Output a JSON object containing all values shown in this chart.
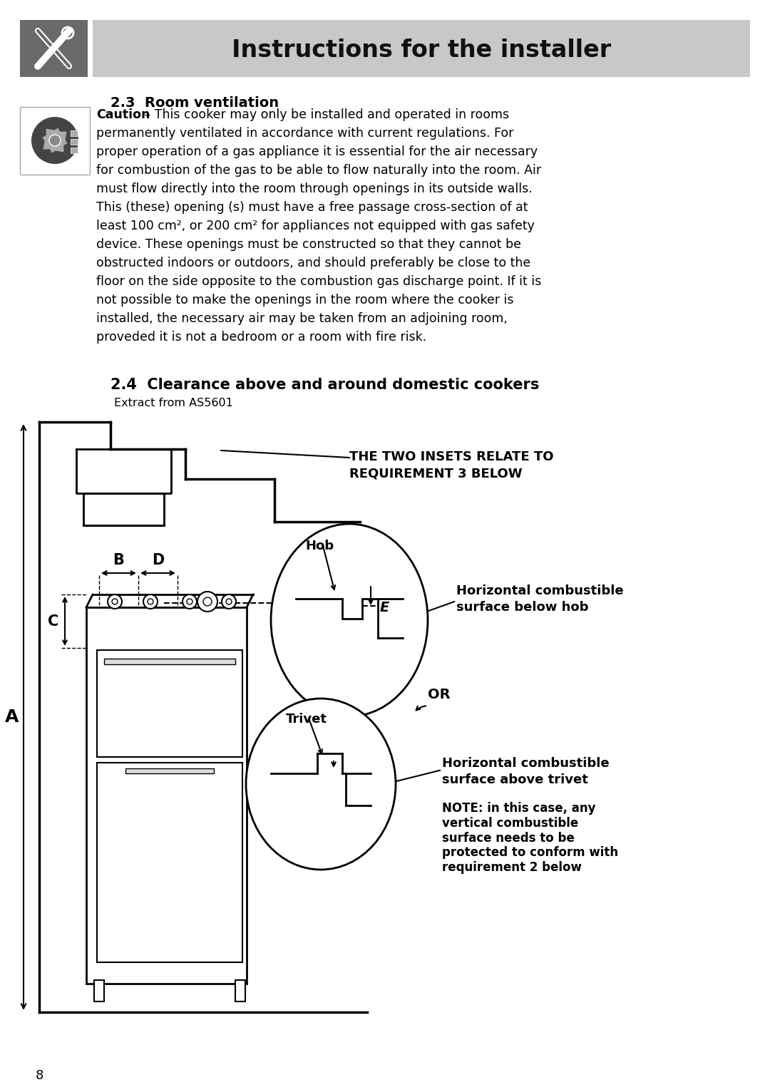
{
  "title_text": "Instructions for the installer",
  "title_bg": "#c8c8c8",
  "icon_bg": "#6a6a6a",
  "section_23_heading": "2.3  Room ventilation",
  "section_24_heading": "2.4  Clearance above and around domestic cookers",
  "section_24_sub": "Extract from AS5601",
  "caution_bold": "Caution",
  "caution_rest": " – This cooker may only be installed and operated in rooms",
  "body_lines": [
    "permanently ventilated in accordance with current regulations. For",
    "proper operation of a gas appliance it is essential for the air necessary",
    "for combustion of the gas to be able to flow naturally into the room. Air",
    "must flow directly into the room through openings in its outside walls.",
    "This (these) opening (s) must have a free passage cross-section of at",
    "least 100 cm², or 200 cm² for appliances not equipped with gas safety",
    "device. These openings must be constructed so that they cannot be",
    "obstructed indoors or outdoors, and should preferably be close to the",
    "floor on the side opposite to the combustion gas discharge point. If it is",
    "not possible to make the openings in the room where the cooker is",
    "installed, the necessary air may be taken from an adjoining room,",
    "proveded it is not a bedroom or a room with fire risk."
  ],
  "inset_text1": "THE TWO INSETS RELATE TO",
  "inset_text2": "REQUIREMENT 3 BELOW",
  "label_hcb_line1": "Horizontal combustible",
  "label_hcb_line2": "surface below hob",
  "label_hca_line1": "Horizontal combustible",
  "label_hca_line2": "surface above trivet",
  "label_note": "NOTE: in this case, any\nvertical combustible\nsurface needs to be\nprotected to conform with\nrequirement 2 below",
  "label_A": "A",
  "label_B": "B",
  "label_C": "C",
  "label_D": "D",
  "label_E": "E",
  "label_Hob": "Hob",
  "label_Trivet": "Trivet",
  "label_OR": "OR",
  "page_number": "8",
  "bg_color": "#ffffff",
  "text_color": "#000000",
  "title_fontsize": 24,
  "heading_fontsize": 14,
  "body_fontsize": 12.5,
  "diagram_fontsize": 13
}
